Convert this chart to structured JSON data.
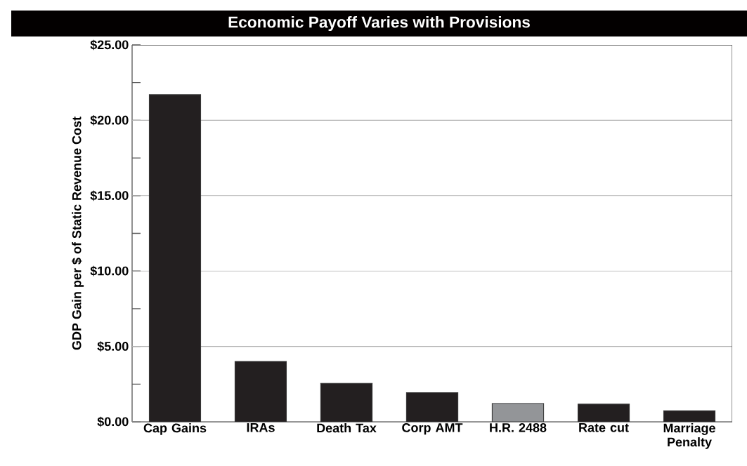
{
  "chart_data": {
    "type": "bar",
    "title": "Economic Payoff Varies with Provisions",
    "ylabel": "GDP Gain per $ of Static Revenue Cost",
    "categories": [
      "Cap Gains",
      "IRAs",
      "Death Tax",
      "Corp AMT",
      "H.R. 2488",
      "Rate cut",
      "Marriage Penalty"
    ],
    "values": [
      21.7,
      4.0,
      2.55,
      1.93,
      1.22,
      1.17,
      0.73
    ],
    "colors": [
      "#231f20",
      "#231f20",
      "#231f20",
      "#231f20",
      "#939598",
      "#231f20",
      "#231f20"
    ],
    "ylim": [
      0,
      25
    ],
    "yticks": [
      {
        "value": 0,
        "label": "$0.00"
      },
      {
        "value": 2.5,
        "label": null
      },
      {
        "value": 5,
        "label": "$5.00"
      },
      {
        "value": 7.5,
        "label": null
      },
      {
        "value": 10,
        "label": "$10.00"
      },
      {
        "value": 12.5,
        "label": null
      },
      {
        "value": 15,
        "label": "$15.00"
      },
      {
        "value": 17.5,
        "label": null
      },
      {
        "value": 20,
        "label": "$20.00"
      },
      {
        "value": 22.5,
        "label": null
      },
      {
        "value": 25,
        "label": "$25.00"
      }
    ],
    "grid": "y"
  }
}
